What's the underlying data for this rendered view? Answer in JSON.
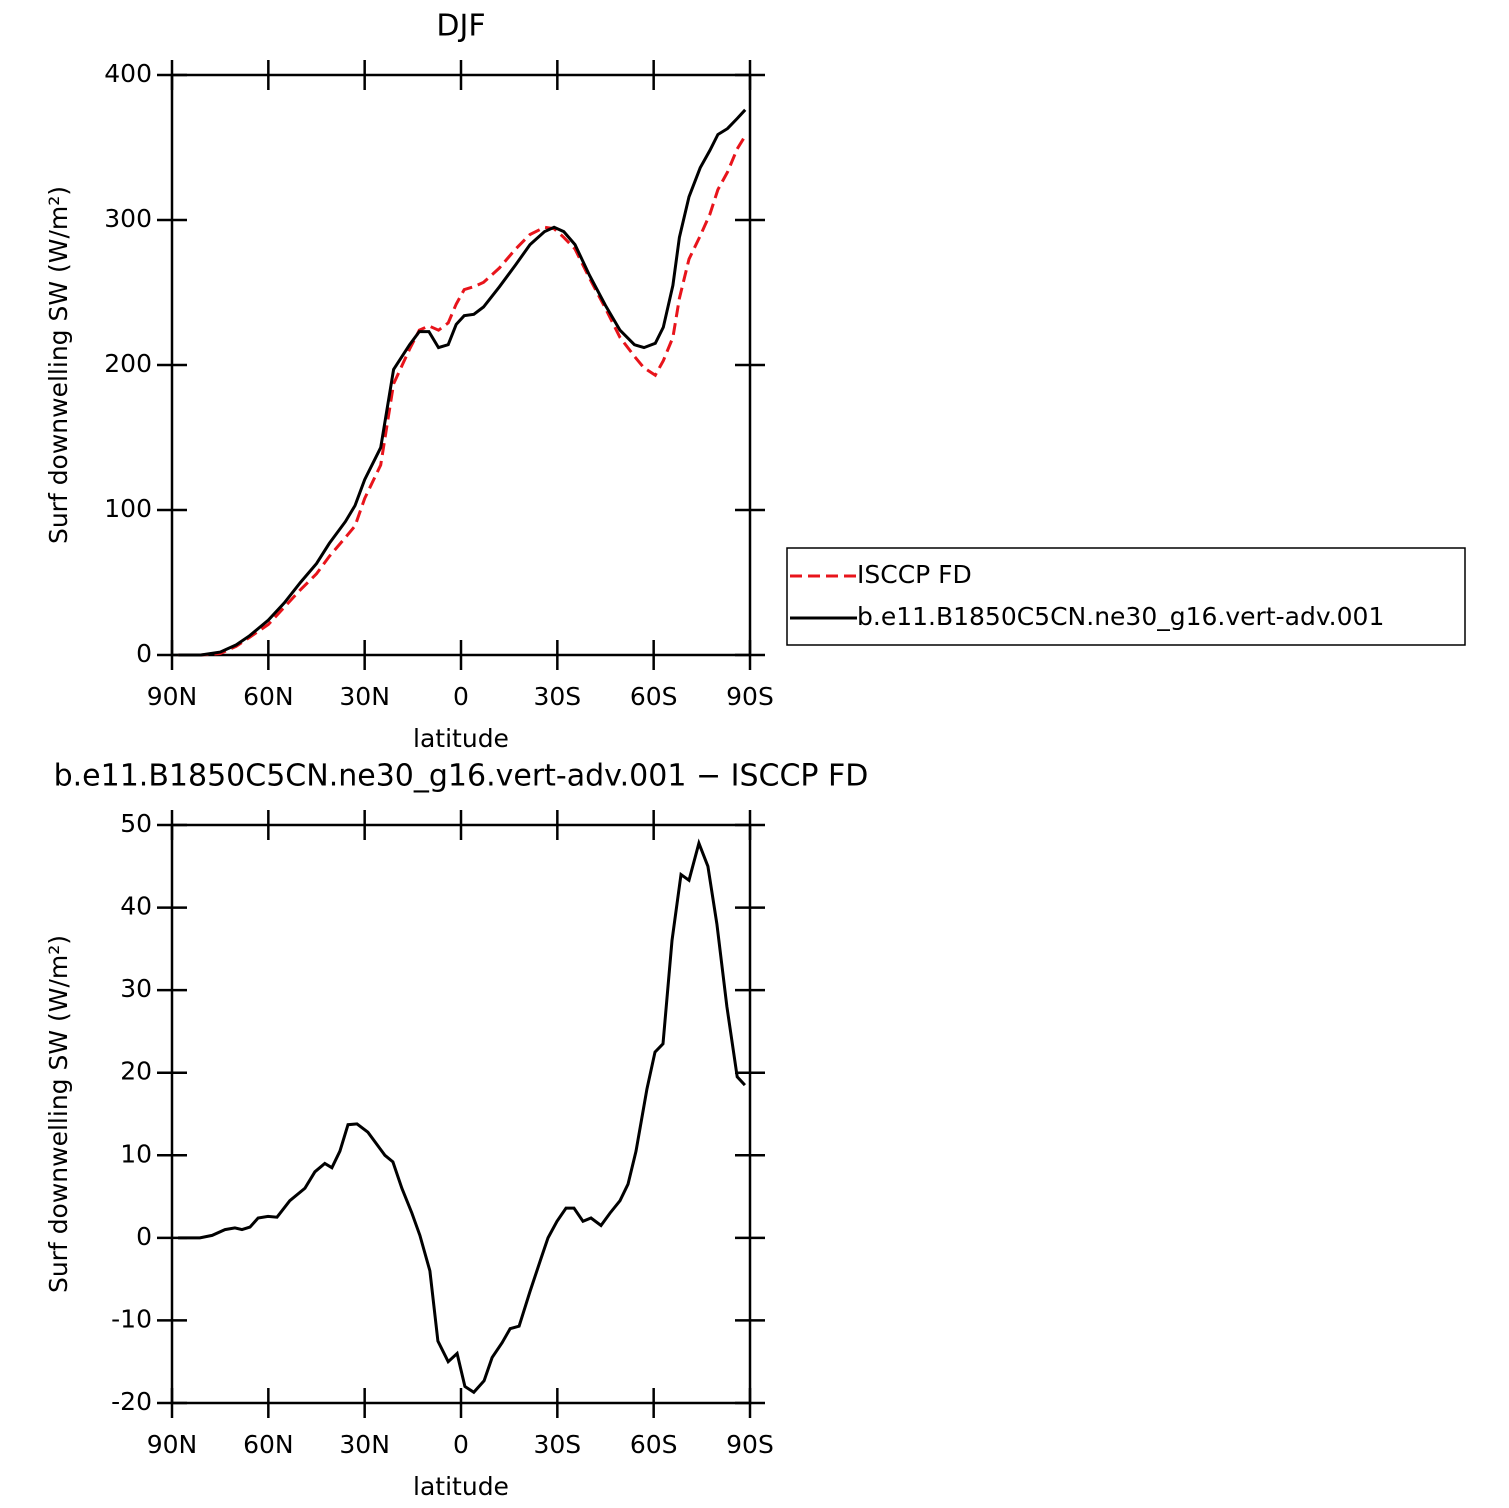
{
  "chart_data": [
    {
      "type": "line",
      "title": "DJF",
      "xlabel": "latitude",
      "ylabel": "Surf downwelling SW (W/m²)",
      "x": [
        88,
        81,
        75,
        70,
        66,
        60,
        55,
        50,
        45,
        41,
        36,
        33,
        30,
        25,
        21,
        16,
        13,
        10,
        7,
        4,
        1.5,
        -1,
        -4,
        -7,
        -12,
        -17,
        -21.5,
        -26,
        -29,
        -32,
        -35.5,
        -40,
        -45,
        -49.5,
        -54,
        -57,
        -60.5,
        -63,
        -66,
        -68,
        -71,
        -74.5,
        -77.5,
        -80,
        -83,
        -86,
        -88.5
      ],
      "series": [
        {
          "name": "ISCCP FD",
          "color": "#e8141b",
          "linestyle": "dashed",
          "values": [
            0,
            0,
            1,
            6,
            12,
            21,
            33,
            45,
            56,
            68,
            81,
            89,
            108,
            131,
            187,
            211,
            224,
            227,
            224,
            229,
            242,
            252,
            254,
            257,
            267,
            280,
            290,
            295,
            294,
            288,
            280,
            260,
            239,
            219,
            206,
            198,
            193,
            203,
            219,
            246,
            273,
            289,
            304,
            321,
            333,
            349,
            358
          ]
        },
        {
          "name": "b.e11.B1850C5CN.ne30_g16.vert-adv.001",
          "color": "#000000",
          "linestyle": "solid",
          "values": [
            0,
            0,
            2,
            7,
            13,
            24,
            36,
            50,
            63,
            77,
            92,
            103,
            121,
            143,
            197,
            214,
            223,
            223,
            212,
            214,
            228,
            234,
            235,
            240,
            254,
            269,
            283,
            292,
            295,
            292,
            283,
            262,
            241,
            224,
            214,
            212,
            215,
            226,
            255,
            288,
            316,
            336,
            348,
            359,
            363,
            370,
            376
          ]
        }
      ],
      "xlim": [
        90,
        -90
      ],
      "xticks": [
        {
          "value": 90,
          "label": "90N"
        },
        {
          "value": 60,
          "label": "60N"
        },
        {
          "value": 30,
          "label": "30N"
        },
        0,
        {
          "value": -30,
          "label": "30S"
        },
        {
          "value": -60,
          "label": "60S"
        },
        {
          "value": -90,
          "label": "90S"
        }
      ],
      "ylim": [
        0,
        400
      ],
      "yticks": [
        0,
        100,
        200,
        300,
        400
      ],
      "grid": false,
      "legend": "right"
    },
    {
      "type": "line",
      "title": "b.e11.B1850C5CN.ne30_g16.vert-adv.001 − ISCCP FD",
      "xlabel": "latitude",
      "ylabel": "Surf downwelling SW (W/m²)",
      "x": [
        88.1,
        81.3,
        77.5,
        73.5,
        70.4,
        68.2,
        65.7,
        63.2,
        60.1,
        57.3,
        53.3,
        48.6,
        45.5,
        42.4,
        40.2,
        37.7,
        35.2,
        32.4,
        29,
        23.7,
        21.2,
        18.4,
        15.3,
        12.8,
        9.7,
        7.2,
        4,
        1.2,
        -1.2,
        -4,
        -7.2,
        -9.7,
        -12.8,
        -15.3,
        -18.1,
        -21.5,
        -24.9,
        -27.1,
        -29.9,
        -32.7,
        -35.2,
        -38,
        -40.5,
        -43.6,
        -46.4,
        -49.5,
        -52,
        -54.5,
        -57.9,
        -60.4,
        -62.9,
        -65.7,
        -68.5,
        -71,
        -74.1,
        -76.9,
        -79.7,
        -82.8,
        -86,
        -88.4
      ],
      "series": [
        {
          "name": null,
          "color": "#000000",
          "linestyle": "solid",
          "values": [
            0,
            0,
            0.3,
            1,
            1.2,
            1,
            1.3,
            2.4,
            2.6,
            2.5,
            4.5,
            6,
            8,
            9,
            8.5,
            10.5,
            13.7,
            13.8,
            12.8,
            10,
            9.2,
            6,
            3,
            0.3,
            -4,
            -12.5,
            -15,
            -14,
            -18,
            -18.7,
            -17.3,
            -14.5,
            -12.7,
            -11,
            -10.7,
            -6.5,
            -2.5,
            0,
            2,
            3.6,
            3.6,
            2,
            2.4,
            1.5,
            3,
            4.5,
            6.5,
            10.5,
            18,
            22.5,
            23.5,
            36,
            44,
            43.3,
            47.8,
            45,
            38,
            28,
            19.5,
            18.5
          ]
        }
      ],
      "xlim": [
        90,
        -90
      ],
      "xticks": [
        {
          "value": 90,
          "label": "90N"
        },
        {
          "value": 60,
          "label": "60N"
        },
        {
          "value": 30,
          "label": "30N"
        },
        0,
        {
          "value": -30,
          "label": "30S"
        },
        {
          "value": -60,
          "label": "60S"
        },
        {
          "value": -90,
          "label": "90S"
        }
      ],
      "ylim": [
        -20,
        50
      ],
      "yticks": [
        -20,
        -10,
        0,
        10,
        20,
        30,
        40,
        50
      ],
      "grid": false
    }
  ]
}
